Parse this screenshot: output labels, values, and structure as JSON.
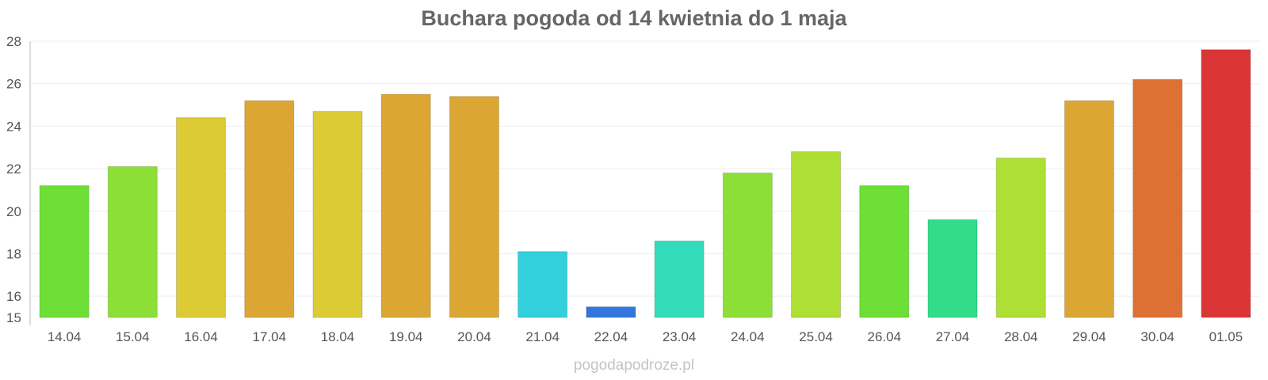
{
  "chart_data": {
    "type": "bar",
    "title": "Buchara pogoda od 14 kwietnia do 1 maja",
    "xlabel": "",
    "ylabel": "",
    "ylim": [
      15,
      28
    ],
    "yticks": [
      15,
      16,
      18,
      20,
      22,
      24,
      26,
      28
    ],
    "grid": true,
    "legend": "none",
    "categories": [
      "14.04",
      "15.04",
      "16.04",
      "17.04",
      "18.04",
      "19.04",
      "20.04",
      "21.04",
      "22.04",
      "23.04",
      "24.04",
      "25.04",
      "26.04",
      "27.04",
      "28.04",
      "29.04",
      "30.04",
      "01.05"
    ],
    "values": [
      21.2,
      22.1,
      24.4,
      25.2,
      24.7,
      25.5,
      25.4,
      18.1,
      15.5,
      18.6,
      21.8,
      22.8,
      21.2,
      19.6,
      22.5,
      25.2,
      26.2,
      27.6
    ],
    "colors": [
      "#6ddf37",
      "#8ddf37",
      "#dccb35",
      "#dca635",
      "#dccb35",
      "#dca635",
      "#dca635",
      "#33cfdc",
      "#3376dc",
      "#33dcbb",
      "#8ddf37",
      "#addf35",
      "#6ddf37",
      "#33dc88",
      "#addf35",
      "#dca635",
      "#dc7035",
      "#dc3535"
    ]
  },
  "watermark": "pogodapodroze.pl"
}
